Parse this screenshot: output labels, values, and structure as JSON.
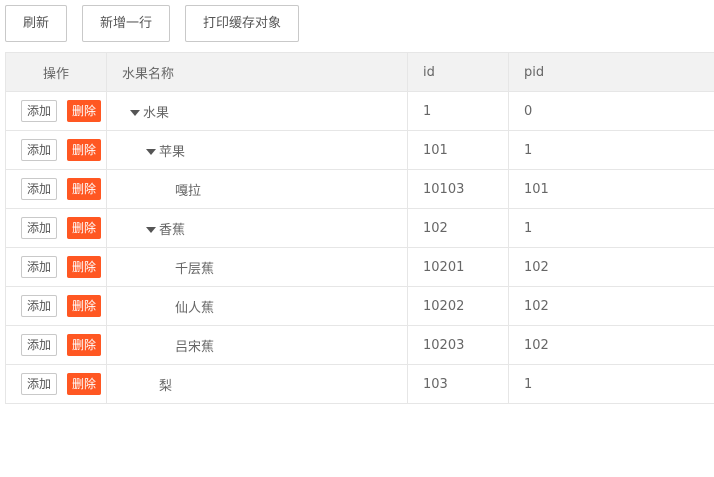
{
  "toolbar": {
    "refresh": "刷新",
    "add_row": "新增一行",
    "print_cache": "打印缓存对象"
  },
  "table": {
    "headers": {
      "op": "操作",
      "name": "水果名称",
      "id": "id",
      "pid": "pid"
    },
    "add_label": "添加",
    "delete_label": "删除",
    "rows": [
      {
        "name": "水果",
        "id": "1",
        "pid": "0",
        "level": 0,
        "expanded": true
      },
      {
        "name": "苹果",
        "id": "101",
        "pid": "1",
        "level": 1,
        "expanded": true
      },
      {
        "name": "嘎拉",
        "id": "10103",
        "pid": "101",
        "level": 2,
        "expanded": null
      },
      {
        "name": "香蕉",
        "id": "102",
        "pid": "1",
        "level": 1,
        "expanded": true
      },
      {
        "name": "千层蕉",
        "id": "10201",
        "pid": "102",
        "level": 2,
        "expanded": null
      },
      {
        "name": "仙人蕉",
        "id": "10202",
        "pid": "102",
        "level": 2,
        "expanded": null
      },
      {
        "name": "吕宋蕉",
        "id": "10203",
        "pid": "102",
        "level": 2,
        "expanded": null
      },
      {
        "name": "梨",
        "id": "103",
        "pid": "1",
        "level": 1,
        "expanded": null
      }
    ]
  },
  "colors": {
    "delete": "#ff5722",
    "header_bg": "#f2f2f2"
  }
}
